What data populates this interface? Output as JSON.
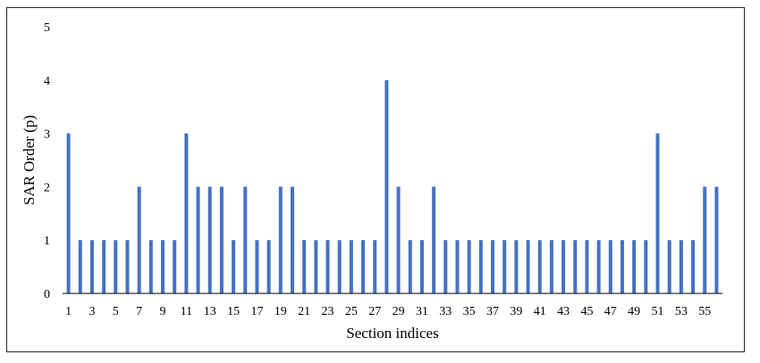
{
  "chart_data": {
    "type": "bar",
    "xlabel": "Section indices",
    "ylabel": "SAR Order (p)",
    "ylim": [
      0,
      5
    ],
    "yticks": [
      0,
      1,
      2,
      3,
      4,
      5
    ],
    "grid": false,
    "legend": "none",
    "bar_color": "#4472C4",
    "categories": [
      1,
      2,
      3,
      4,
      5,
      6,
      7,
      8,
      9,
      10,
      11,
      12,
      13,
      14,
      15,
      16,
      17,
      18,
      19,
      20,
      21,
      22,
      23,
      24,
      25,
      26,
      27,
      28,
      29,
      30,
      31,
      32,
      33,
      34,
      35,
      36,
      37,
      38,
      39,
      40,
      41,
      42,
      43,
      44,
      45,
      46,
      47,
      48,
      49,
      50,
      51,
      52,
      53,
      54,
      55,
      56
    ],
    "x_tick_labels": [
      "1",
      "3",
      "5",
      "7",
      "9",
      "11",
      "13",
      "15",
      "17",
      "19",
      "21",
      "23",
      "25",
      "27",
      "29",
      "31",
      "33",
      "35",
      "37",
      "39",
      "41",
      "43",
      "45",
      "47",
      "49",
      "51",
      "53",
      "55"
    ],
    "values": [
      3,
      1,
      1,
      1,
      1,
      1,
      2,
      1,
      1,
      1,
      3,
      2,
      2,
      2,
      1,
      2,
      1,
      1,
      2,
      2,
      1,
      1,
      1,
      1,
      1,
      1,
      1,
      4,
      2,
      1,
      1,
      2,
      1,
      1,
      1,
      1,
      1,
      1,
      1,
      1,
      1,
      1,
      1,
      1,
      1,
      1,
      1,
      1,
      1,
      1,
      3,
      1,
      1,
      1,
      2,
      2
    ]
  }
}
